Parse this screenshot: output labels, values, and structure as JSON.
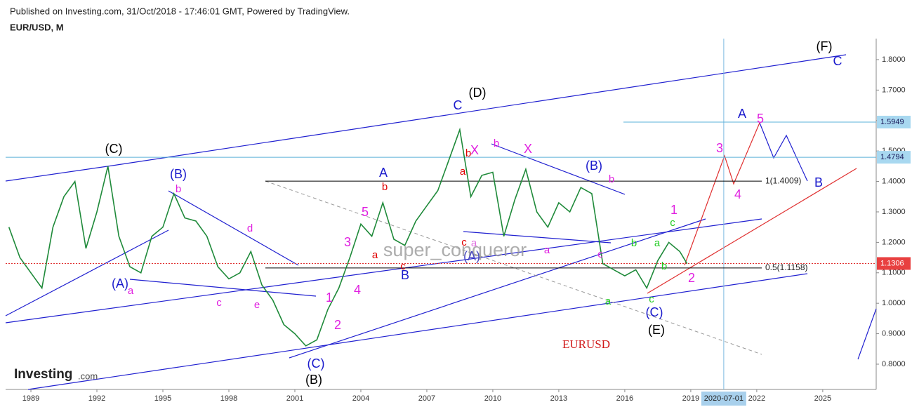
{
  "header": {
    "published": "Published on Investing.com, 31/Oct/2018 - 17:46:01 GMT, Powered by TradingView.",
    "symbol": "EUR/USD, M"
  },
  "logo": {
    "main": "Investing",
    "suffix": ".com"
  },
  "chart_data": {
    "type": "line",
    "color": "#1f8a3a",
    "x": [
      1988.0,
      1988.5,
      1989.0,
      1989.5,
      1990.0,
      1990.5,
      1991.0,
      1991.5,
      1992.0,
      1992.5,
      1993.0,
      1993.5,
      1994.0,
      1994.5,
      1995.0,
      1995.5,
      1996.0,
      1996.5,
      1997.0,
      1997.5,
      1998.0,
      1998.5,
      1999.0,
      1999.5,
      2000.0,
      2000.5,
      2001.0,
      2001.5,
      2002.0,
      2002.5,
      2003.0,
      2003.5,
      2004.0,
      2004.5,
      2005.0,
      2005.5,
      2006.0,
      2006.5,
      2007.0,
      2007.5,
      2008.0,
      2008.5,
      2009.0,
      2009.5,
      2010.0,
      2010.5,
      2011.0,
      2011.5,
      2012.0,
      2012.5,
      2013.0,
      2013.5,
      2014.0,
      2014.5,
      2015.0,
      2015.5,
      2016.0,
      2016.5,
      2017.0,
      2017.5,
      2018.0,
      2018.5,
      2018.83
    ],
    "values": [
      1.25,
      1.15,
      1.1,
      1.05,
      1.25,
      1.35,
      1.4,
      1.18,
      1.3,
      1.45,
      1.22,
      1.12,
      1.1,
      1.22,
      1.25,
      1.36,
      1.28,
      1.27,
      1.22,
      1.12,
      1.08,
      1.1,
      1.17,
      1.06,
      1.01,
      0.93,
      0.9,
      0.86,
      0.88,
      0.98,
      1.05,
      1.15,
      1.26,
      1.22,
      1.33,
      1.21,
      1.19,
      1.27,
      1.32,
      1.37,
      1.47,
      1.57,
      1.35,
      1.42,
      1.43,
      1.22,
      1.34,
      1.44,
      1.3,
      1.25,
      1.33,
      1.3,
      1.38,
      1.36,
      1.13,
      1.11,
      1.09,
      1.11,
      1.05,
      1.14,
      1.2,
      1.17,
      1.13
    ],
    "xlim": [
      1987.85,
      2027.43
    ],
    "ylim": [
      0.717,
      1.869
    ],
    "xticks": [
      1989,
      1992,
      1995,
      1998,
      2001,
      2004,
      2007,
      2010,
      2013,
      2016,
      2019,
      2022,
      2025
    ],
    "cursor_x": {
      "value": 2020.5,
      "label": "2020-07-01"
    },
    "yticks": [
      {
        "value": 0.8,
        "label": "0.8000"
      },
      {
        "value": 0.9,
        "label": "0.9000"
      },
      {
        "value": 1.0,
        "label": "1.0000"
      },
      {
        "value": 1.1,
        "label": "1.1000"
      },
      {
        "value": 1.2,
        "label": "1.2000"
      },
      {
        "value": 1.3,
        "label": "1.3000"
      },
      {
        "value": 1.4,
        "label": "1.4000"
      },
      {
        "value": 1.5,
        "label": "1.5000"
      },
      {
        "value": 1.6,
        "label": "1.6000"
      },
      {
        "value": 1.7,
        "label": "1.7000"
      },
      {
        "value": 1.8,
        "label": "1.8000"
      }
    ],
    "price_levels": [
      1.5949,
      1.4794
    ],
    "last_price": 1.1306,
    "fib_levels": [
      {
        "value": 1.4009,
        "label": "1(1.4009)"
      },
      {
        "value": 1.1158,
        "label": "0.5(1.1158)"
      }
    ],
    "watermark": "super_conqueror",
    "symbol_label": "EURUSD",
    "annotations": [
      {
        "text": "(C)",
        "color": "#000000"
      },
      {
        "text": "(D)",
        "color": "#000000"
      },
      {
        "text": "(F)",
        "color": "#000000"
      },
      {
        "text": "(B)",
        "color": "#000000"
      },
      {
        "text": "(E)",
        "color": "#000000"
      },
      {
        "text": "(B)",
        "color": "#1a1acc"
      },
      {
        "text": "(A)",
        "color": "#1a1acc"
      },
      {
        "text": "(C)",
        "color": "#1a1acc"
      },
      {
        "text": "(A)",
        "color": "#4a4ac0"
      },
      {
        "text": "(B)",
        "color": "#1a1acc"
      },
      {
        "text": "(C)",
        "color": "#1a1acc"
      },
      {
        "text": "C",
        "color": "#1a1acc"
      },
      {
        "text": "A",
        "color": "#1a1acc"
      },
      {
        "text": "B",
        "color": "#1a1acc"
      },
      {
        "text": "A",
        "color": "#1a1acc"
      },
      {
        "text": "B",
        "color": "#1a1acc"
      },
      {
        "text": "C",
        "color": "#1a1acc"
      },
      {
        "text": "b",
        "color": "#e020e0"
      },
      {
        "text": "d",
        "color": "#e020e0"
      },
      {
        "text": "a",
        "color": "#e020e0"
      },
      {
        "text": "c",
        "color": "#e020e0"
      },
      {
        "text": "e",
        "color": "#e020e0"
      },
      {
        "text": "1",
        "color": "#e020e0"
      },
      {
        "text": "2",
        "color": "#e020e0"
      },
      {
        "text": "3",
        "color": "#e020e0"
      },
      {
        "text": "4",
        "color": "#e020e0"
      },
      {
        "text": "5",
        "color": "#e020e0"
      },
      {
        "text": "b",
        "color": "#e020e0"
      },
      {
        "text": "X",
        "color": "#e020e0"
      },
      {
        "text": "X",
        "color": "#e020e0"
      },
      {
        "text": "b",
        "color": "#e020e0"
      },
      {
        "text": "a",
        "color": "#e020e0"
      },
      {
        "text": "c",
        "color": "#e020e0"
      },
      {
        "text": "1",
        "color": "#e020e0"
      },
      {
        "text": "2",
        "color": "#e020e0"
      },
      {
        "text": "3",
        "color": "#e020e0"
      },
      {
        "text": "4",
        "color": "#e020e0"
      },
      {
        "text": "5",
        "color": "#e020e0"
      },
      {
        "text": "b",
        "color": "#e00000"
      },
      {
        "text": "a",
        "color": "#e00000"
      },
      {
        "text": "b",
        "color": "#e00000"
      },
      {
        "text": "c",
        "color": "#e00000"
      },
      {
        "text": "a",
        "color": "#e00000"
      },
      {
        "text": "c",
        "color": "#e00000"
      },
      {
        "text": "a",
        "color": "#e070e0"
      },
      {
        "text": "b",
        "color": "#22cc22"
      },
      {
        "text": "a",
        "color": "#22cc22"
      },
      {
        "text": "c",
        "color": "#22cc22"
      },
      {
        "text": "b",
        "color": "#22cc22"
      },
      {
        "text": "a",
        "color": "#22cc22"
      },
      {
        "text": "c",
        "color": "#22cc22"
      }
    ]
  }
}
